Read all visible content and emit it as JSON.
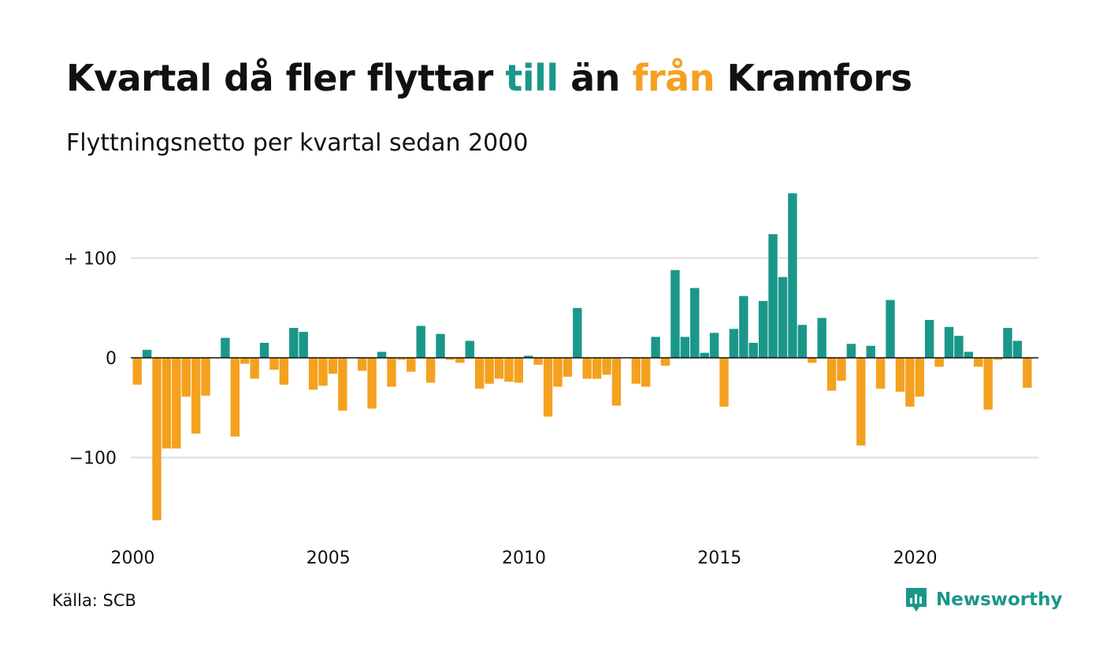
{
  "title": {
    "part1": "Kvartal då fler flyttar ",
    "highlight_in": "till",
    "part2": " än ",
    "highlight_out": "från",
    "part3": " Kramfors"
  },
  "subtitle": "Flyttningsnetto per kvartal sedan 2000",
  "source": "Källa: SCB",
  "brand": "Newsworthy",
  "colors": {
    "positive": "#1a978a",
    "negative": "#f4a11f",
    "grid": "#dddddd",
    "baseline": "#111111",
    "text": "#111111"
  },
  "chart_data": {
    "type": "bar",
    "x_start": 2000,
    "x_step": 0.25,
    "xlim": [
      1999.95,
      2023.15
    ],
    "ylim": [
      -175,
      175
    ],
    "grid": true,
    "y_ticks": [
      {
        "value": 100,
        "label": "+ 100"
      },
      {
        "value": 0,
        "label": "0"
      },
      {
        "value": -100,
        "label": "−100"
      }
    ],
    "x_ticks": [
      {
        "value": 2000,
        "label": "2000"
      },
      {
        "value": 2005,
        "label": "2005"
      },
      {
        "value": 2010,
        "label": "2010"
      },
      {
        "value": 2015,
        "label": "2015"
      },
      {
        "value": 2020,
        "label": "2020"
      }
    ],
    "values": [
      -27,
      8,
      -163,
      -91,
      -91,
      -39,
      -76,
      -38,
      0,
      20,
      -79,
      -6,
      -21,
      15,
      -12,
      -27,
      30,
      26,
      -32,
      -28,
      -16,
      -53,
      0,
      -13,
      -51,
      6,
      -29,
      -2,
      -14,
      32,
      -25,
      24,
      -2,
      -5,
      17,
      -31,
      -26,
      -21,
      -24,
      -25,
      2,
      -7,
      -59,
      -29,
      -19,
      50,
      -21,
      -21,
      -17,
      -48,
      0,
      -26,
      -29,
      21,
      -8,
      88,
      21,
      70,
      5,
      25,
      -49,
      29,
      62,
      15,
      57,
      124,
      81,
      165,
      33,
      -5,
      40,
      -33,
      -23,
      14,
      -88,
      12,
      -31,
      58,
      -34,
      -49,
      -39,
      38,
      -9,
      31,
      22,
      6,
      -9,
      -52,
      -2,
      30,
      17,
      -30
    ]
  }
}
